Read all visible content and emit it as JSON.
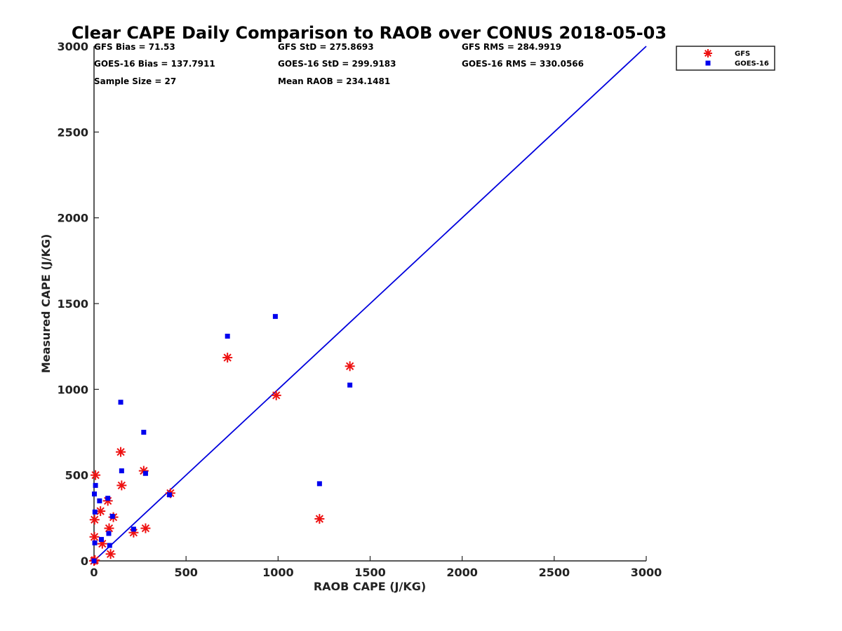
{
  "chart_data": {
    "type": "scatter",
    "title": "Clear CAPE Daily Comparison to RAOB over CONUS 2018-05-03",
    "xlabel": "RAOB CAPE (J/KG)",
    "ylabel": "Measured CAPE (J/KG)",
    "xlim": [
      0,
      3000
    ],
    "ylim": [
      0,
      3000
    ],
    "xticks": [
      "0",
      "500",
      "1000",
      "1500",
      "2000",
      "2500",
      "3000"
    ],
    "yticks": [
      "0",
      "500",
      "1000",
      "1500",
      "2000",
      "2500",
      "3000"
    ],
    "grid": false,
    "legend_position": "top-right outside",
    "stats": [
      "GFS Bias = 71.53",
      "GFS StD = 275.8693",
      "GFS RMS = 284.9919",
      "GOES-16 Bias = 137.7911",
      "GOES-16 StD = 299.9183",
      "GOES-16 RMS = 330.0566",
      "Sample Size = 27",
      "Mean RAOB = 234.1481"
    ],
    "reference_line": {
      "x": [
        0,
        3000
      ],
      "y": [
        0,
        3000
      ],
      "color": "#0000dd"
    },
    "series": [
      {
        "name": "GFS",
        "marker": "asterisk",
        "color": "#ee1111",
        "points": [
          [
            0,
            0
          ],
          [
            5,
            5
          ],
          [
            8,
            500
          ],
          [
            3,
            240
          ],
          [
            2,
            140
          ],
          [
            35,
            290
          ],
          [
            45,
            100
          ],
          [
            75,
            350
          ],
          [
            82,
            190
          ],
          [
            90,
            40
          ],
          [
            105,
            255
          ],
          [
            145,
            635
          ],
          [
            150,
            440
          ],
          [
            215,
            165
          ],
          [
            270,
            525
          ],
          [
            280,
            190
          ],
          [
            415,
            395
          ],
          [
            725,
            1185
          ],
          [
            990,
            965
          ],
          [
            1225,
            245
          ],
          [
            1390,
            1135
          ]
        ]
      },
      {
        "name": "GOES-16",
        "marker": "square",
        "color": "#0000ee",
        "points": [
          [
            0,
            0
          ],
          [
            2,
            390
          ],
          [
            4,
            105
          ],
          [
            5,
            285
          ],
          [
            8,
            440
          ],
          [
            30,
            350
          ],
          [
            40,
            125
          ],
          [
            75,
            365
          ],
          [
            80,
            160
          ],
          [
            85,
            90
          ],
          [
            100,
            260
          ],
          [
            145,
            925
          ],
          [
            150,
            525
          ],
          [
            215,
            185
          ],
          [
            270,
            750
          ],
          [
            280,
            510
          ],
          [
            410,
            385
          ],
          [
            725,
            1310
          ],
          [
            985,
            1425
          ],
          [
            1225,
            450
          ],
          [
            1390,
            1025
          ]
        ]
      }
    ]
  }
}
